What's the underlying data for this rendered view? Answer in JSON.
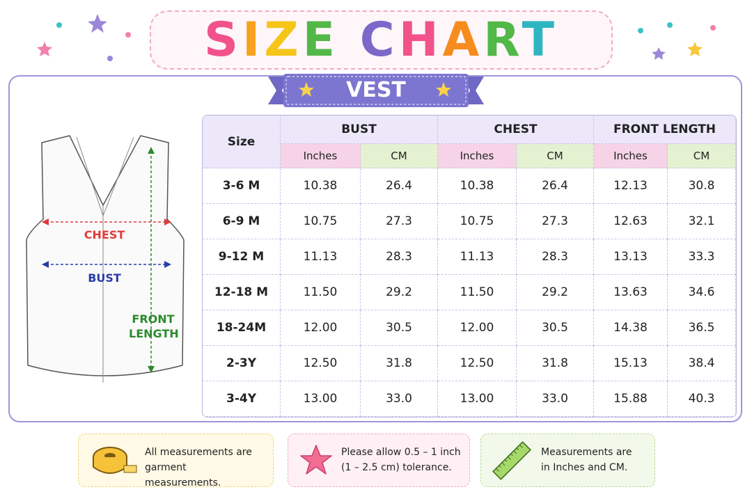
{
  "header": {
    "title": "SIZE CHART",
    "subtitle": "VEST"
  },
  "diagram": {
    "labels": [
      "CHEST",
      "BUST",
      "FRONT LENGTH"
    ]
  },
  "table": {
    "size_header": "Size",
    "groups": [
      "BUST",
      "CHEST",
      "FRONT LENGTH"
    ],
    "units": [
      "Inches",
      "CM",
      "Inches",
      "CM",
      "Inches",
      "CM"
    ],
    "rows": [
      [
        "3-6 M",
        "10.38",
        "26.4",
        "10.38",
        "26.4",
        "12.13",
        "30.8"
      ],
      [
        "6-9 M",
        "10.75",
        "27.3",
        "10.75",
        "27.3",
        "12.63",
        "32.1"
      ],
      [
        "9-12 M",
        "11.13",
        "28.3",
        "11.13",
        "28.3",
        "13.13",
        "33.3"
      ],
      [
        "12-18 M",
        "11.50",
        "29.2",
        "11.50",
        "29.2",
        "13.63",
        "34.6"
      ],
      [
        "18-24M",
        "12.00",
        "30.5",
        "12.00",
        "30.5",
        "14.38",
        "36.5"
      ],
      [
        "2-3Y",
        "12.50",
        "31.8",
        "12.50",
        "31.8",
        "15.13",
        "38.4"
      ],
      [
        "3-4Y",
        "13.00",
        "33.0",
        "13.00",
        "33.0",
        "15.88",
        "40.3"
      ]
    ]
  },
  "notes": [
    "All measurements are garment measurements.",
    "Please allow 0.5 – 1 inch (1 – 2.5 cm) tolerance.",
    "Measurements are in Inches and CM."
  ]
}
